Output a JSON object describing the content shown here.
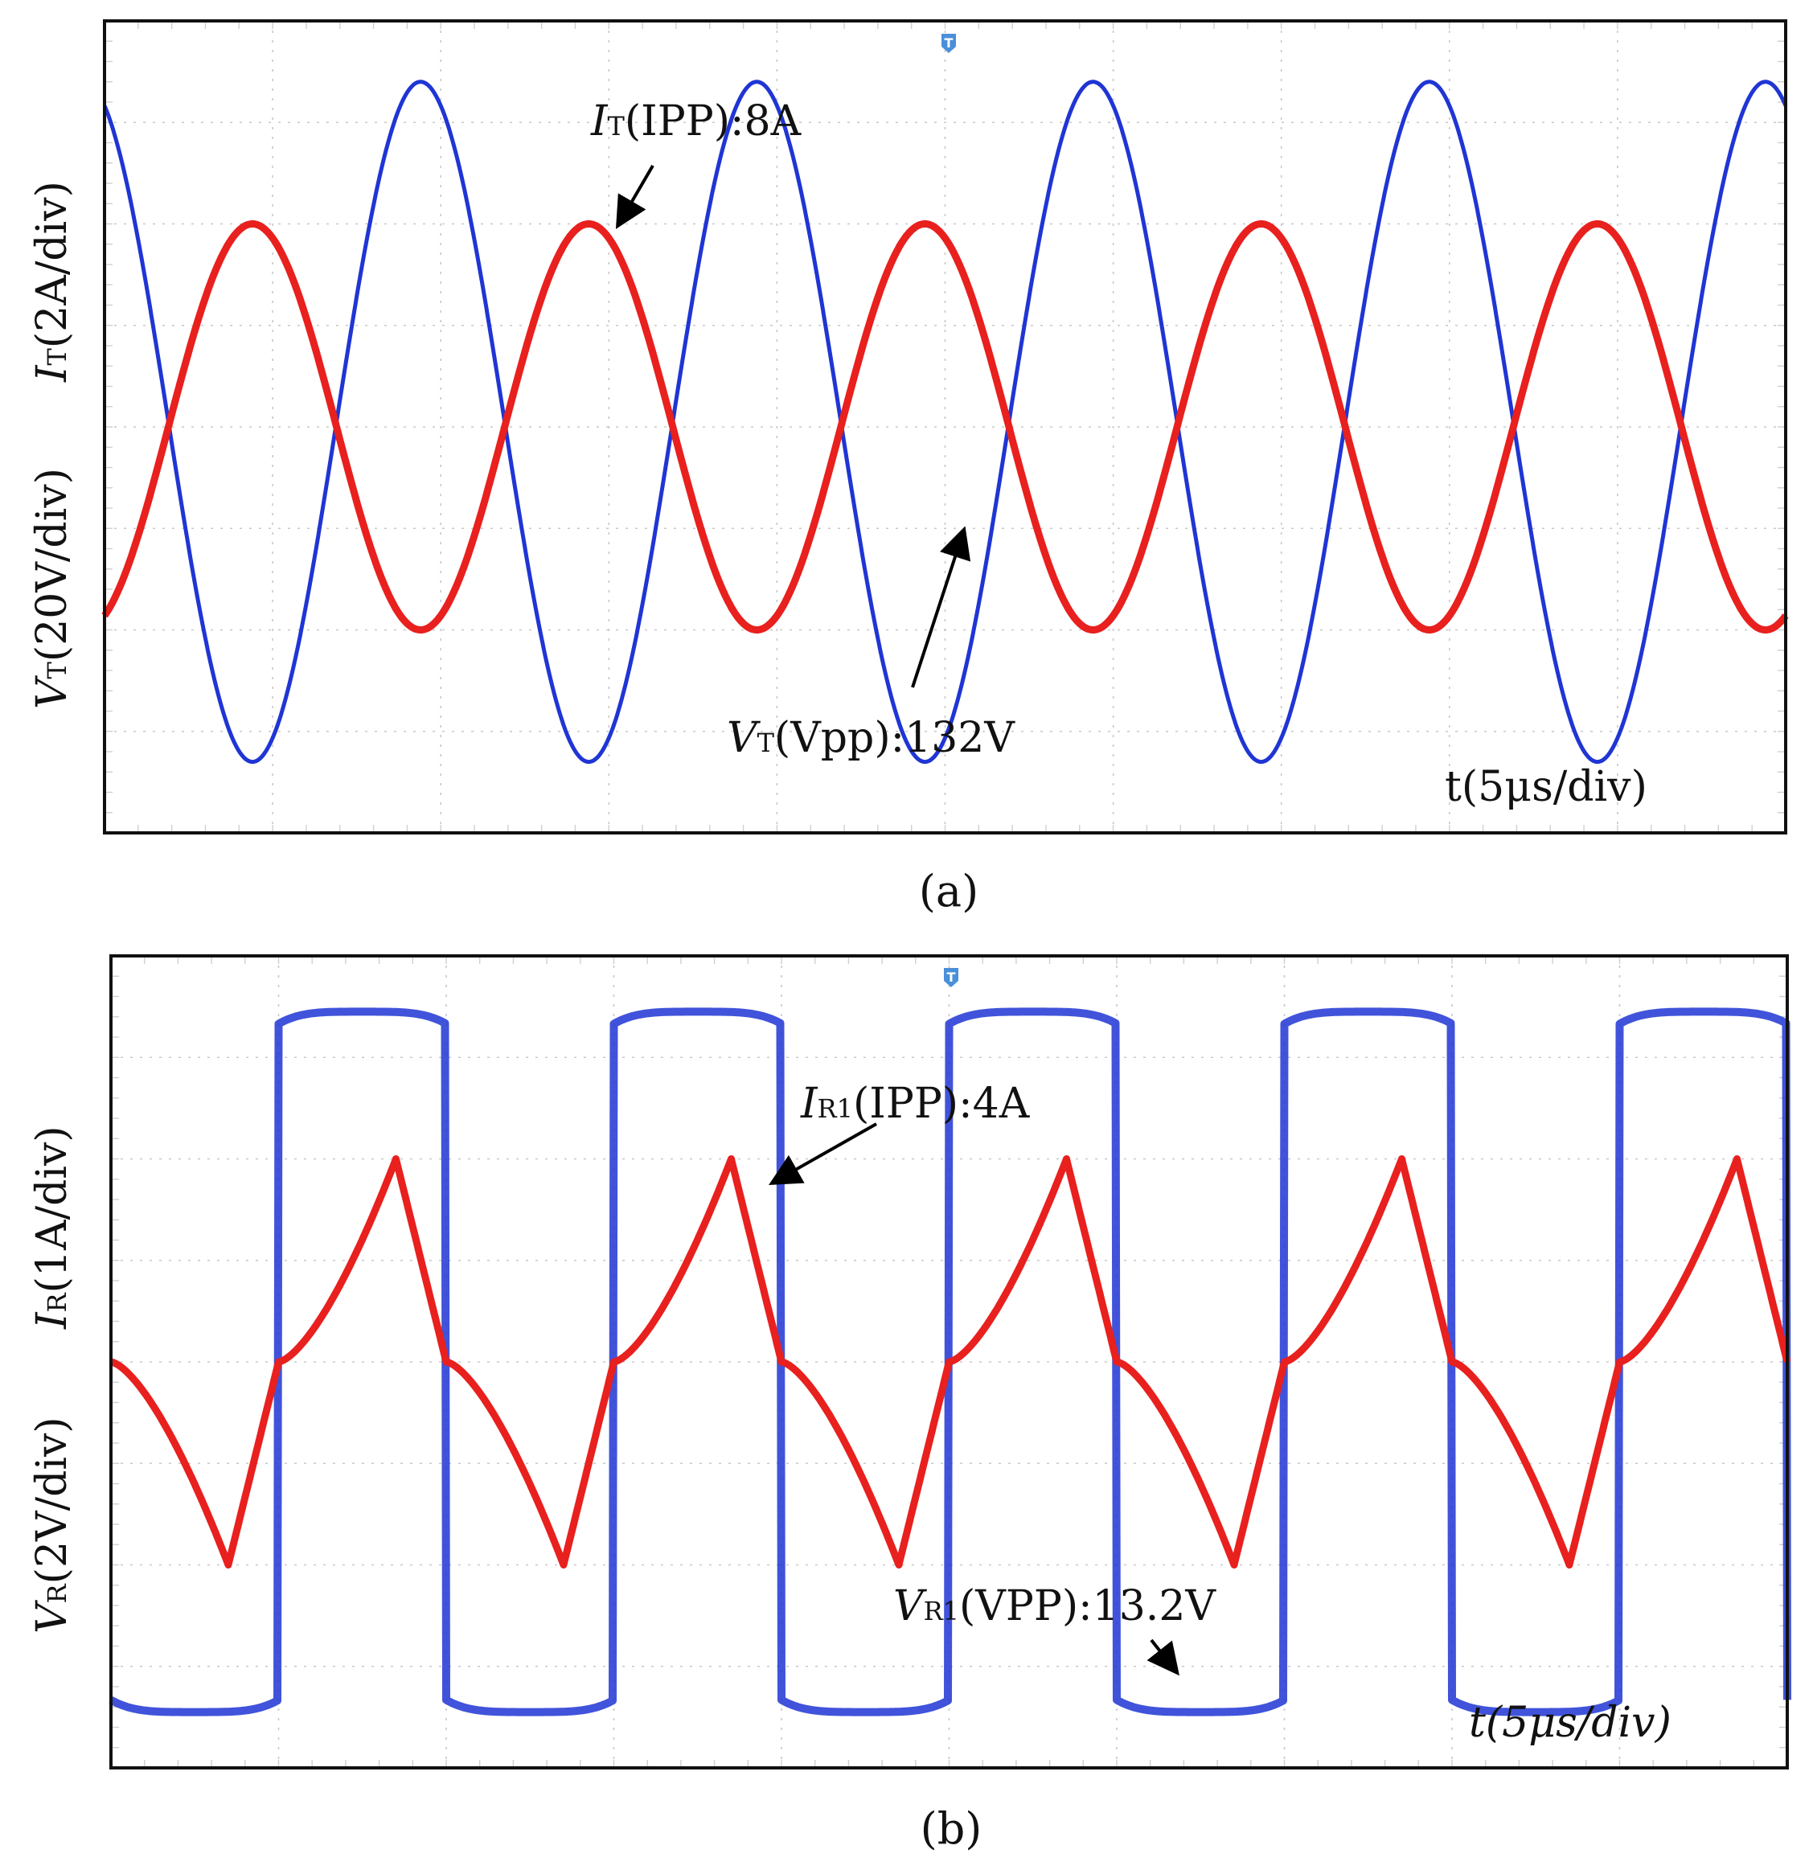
{
  "chart_data": [
    {
      "panel_label": "(a)",
      "type": "line",
      "x_label": "t(5μs/div)",
      "y_label_current": {
        "main": "I",
        "sub": "T",
        "rest": "(2A/div)"
      },
      "y_label_voltage": {
        "main": "V",
        "sub": "T",
        "rest": "(20V/div)"
      },
      "x_div_range": [
        0,
        10
      ],
      "y_div_range": [
        -4,
        4
      ],
      "grid": true,
      "trigger_marker": "T",
      "series": [
        {
          "color": "#1f35d4",
          "waveform": "sine",
          "x0": -0.12,
          "period_div": 2.0,
          "peak_div": 3.4,
          "valley_div": -3.3
        },
        {
          "color": "#e8201e",
          "waveform": "sine",
          "x0": 0.88,
          "period_div": 2.0,
          "peak_div": 2.0,
          "valley_div": -2.0
        }
      ],
      "annotations": [
        {
          "main": "I",
          "sub": "T",
          "rest": "(IPP):8A"
        },
        {
          "main": "V",
          "sub": "T",
          "rest": "(Vpp):132V"
        }
      ]
    },
    {
      "panel_label": "(b)",
      "type": "line",
      "x_label": "t(5μs/div)",
      "y_label_current": {
        "main": "I",
        "sub": "R",
        "rest": "(1A/div)"
      },
      "y_label_voltage": {
        "main": "V",
        "sub": "R",
        "rest": "(2V/div)"
      },
      "x_div_range": [
        0,
        10
      ],
      "y_div_range": [
        -4,
        4
      ],
      "grid": true,
      "trigger_marker": "T",
      "series": [
        {
          "color": "#1f35d4",
          "waveform": "square",
          "x0": 1.0,
          "period_div": 2.0,
          "high_div": 3.5,
          "low_div": -3.5
        },
        {
          "color": "#e8201e",
          "waveform": "triangle",
          "x0": 1.0,
          "period_div": 2.0,
          "peak_div": 2.0,
          "valley_div": -2.0
        }
      ],
      "annotations": [
        {
          "main": "I",
          "sub": "R1",
          "rest": "(IPP):4A"
        },
        {
          "main": "V",
          "sub": "R1",
          "rest": "(VPP):13.2V"
        }
      ]
    }
  ]
}
